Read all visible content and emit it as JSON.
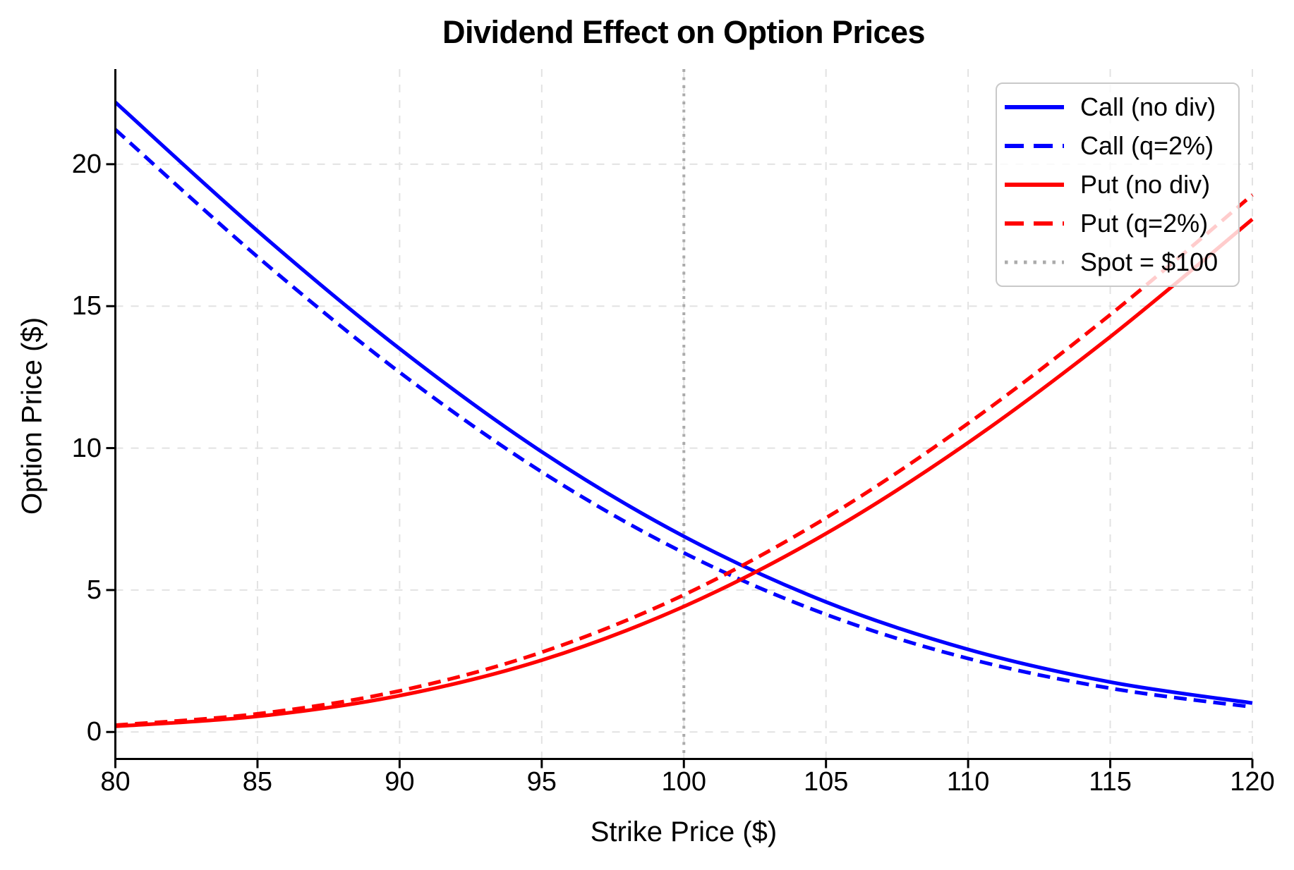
{
  "title": "Dividend Effect on Option Prices",
  "axes": {
    "xlabel": "Strike Price ($)",
    "ylabel": "Option Price ($)"
  },
  "chart_data": {
    "type": "line",
    "title": "Dividend Effect on Option Prices",
    "xlabel": "Strike Price ($)",
    "ylabel": "Option Price ($)",
    "xlim": [
      80,
      120
    ],
    "ylim": [
      -0.95,
      23.35
    ],
    "xticks": [
      80,
      85,
      90,
      95,
      100,
      105,
      110,
      115,
      120
    ],
    "yticks": [
      0,
      5,
      10,
      15,
      20
    ],
    "grid": true,
    "legend_position": "upper right",
    "x": [
      80,
      85,
      90,
      95,
      100,
      105,
      110,
      115,
      120
    ],
    "series": [
      {
        "name": "Call (no div)",
        "color": "#0000ff",
        "dash": "solid",
        "values": [
          22.18,
          17.65,
          13.5,
          9.87,
          6.89,
          4.58,
          2.91,
          1.76,
          1.02
        ]
      },
      {
        "name": "Call (q=2%)",
        "color": "#0000ff",
        "dash": "dashed",
        "values": [
          21.22,
          16.74,
          12.67,
          9.16,
          6.31,
          4.14,
          2.59,
          1.54,
          0.88
        ]
      },
      {
        "name": "Put (no div)",
        "color": "#ff0000",
        "dash": "solid",
        "values": [
          0.2,
          0.55,
          1.28,
          2.53,
          4.42,
          6.99,
          10.19,
          13.92,
          18.06
        ]
      },
      {
        "name": "Put (q=2%)",
        "color": "#ff0000",
        "dash": "dashed",
        "values": [
          0.24,
          0.64,
          1.45,
          2.81,
          4.83,
          7.54,
          10.87,
          14.7,
          18.92
        ]
      }
    ],
    "reference_line": {
      "label": "Spot = $100",
      "x": 100,
      "color": "#ababab",
      "dash": "dotted"
    }
  },
  "colors": {
    "grid": "#e2e2e2",
    "spine": "#000000",
    "text": "#000000",
    "legend_border": "#c9c9c9",
    "background": "#ffffff",
    "call": "#0000ff",
    "put": "#ff0000",
    "spot": "#ababab"
  }
}
